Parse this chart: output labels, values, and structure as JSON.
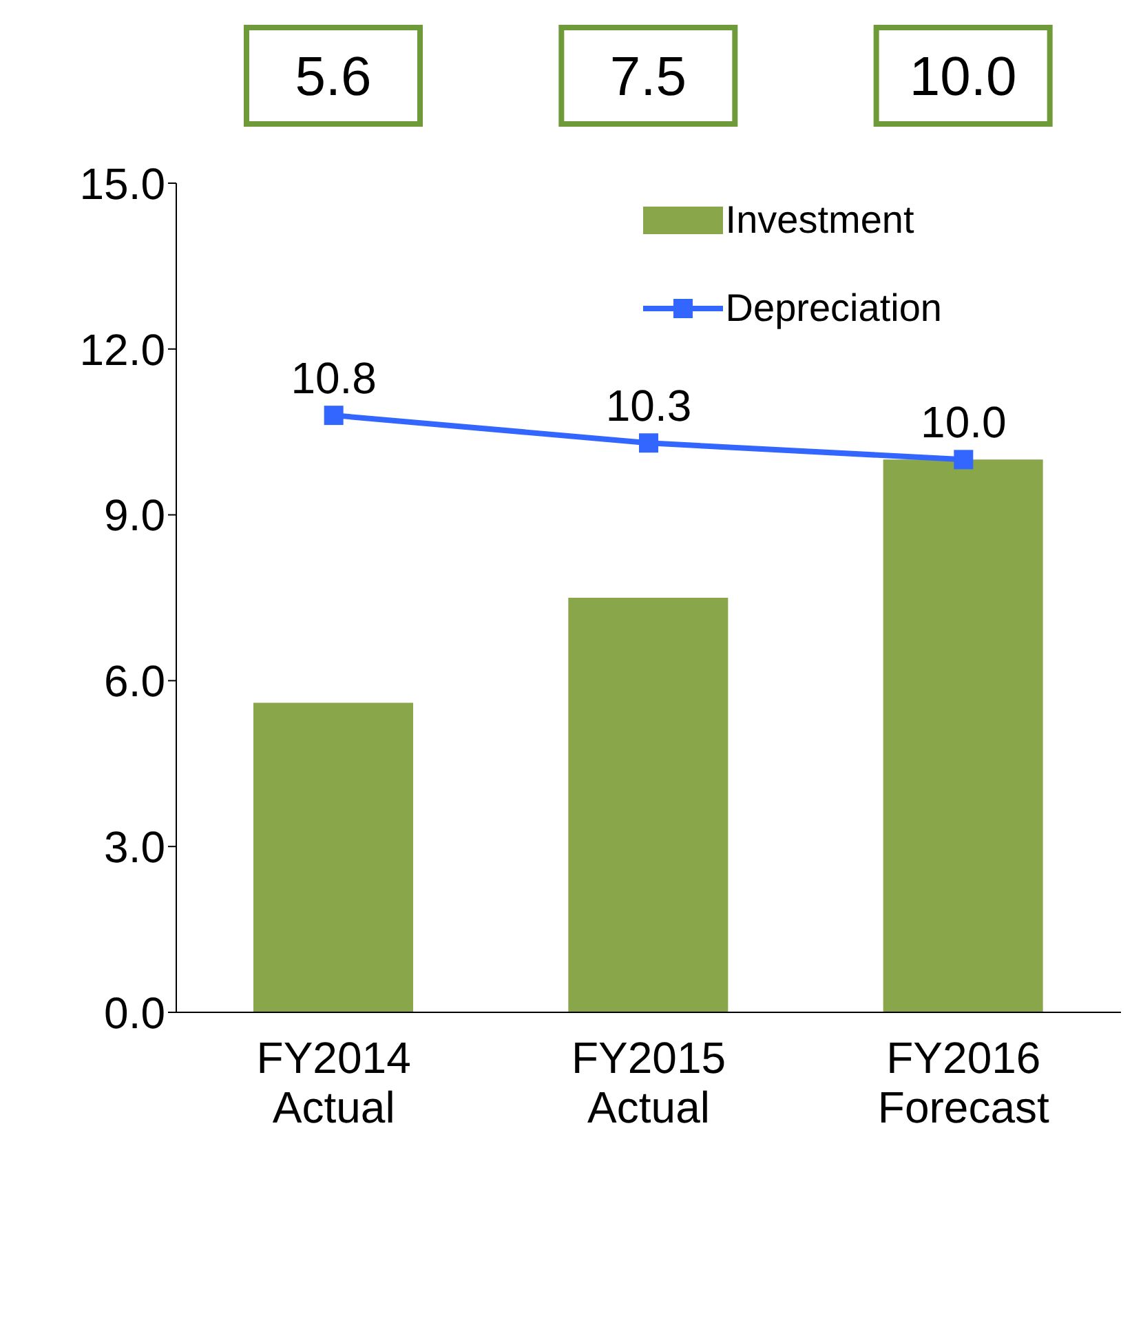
{
  "chart_data": {
    "type": "bar",
    "categories": [
      "FY2014\nActual",
      "FY2015\nActual",
      "FY2016\nForecast"
    ],
    "series": [
      {
        "name": "Investment",
        "color": "#8aa64a",
        "values": [
          5.6,
          7.5,
          10.0
        ],
        "value_labels": [
          "5.6",
          "7.5",
          "10.0"
        ]
      },
      {
        "name": "Depreciation",
        "type": "line",
        "color": "#3366ff",
        "values": [
          10.8,
          10.3,
          10.0
        ],
        "value_labels": [
          "10.8",
          "10.3",
          "10.0"
        ]
      }
    ],
    "ylim": [
      0,
      15
    ],
    "yticks": [
      {
        "value": 0,
        "label": "0.0"
      },
      {
        "value": 3,
        "label": "3.0"
      },
      {
        "value": 6,
        "label": "6.0"
      },
      {
        "value": 9,
        "label": "9.0"
      },
      {
        "value": 12,
        "label": "12.0"
      },
      {
        "value": 15,
        "label": "15.0"
      }
    ],
    "grid": false,
    "legend": "top right",
    "marker": "square"
  }
}
